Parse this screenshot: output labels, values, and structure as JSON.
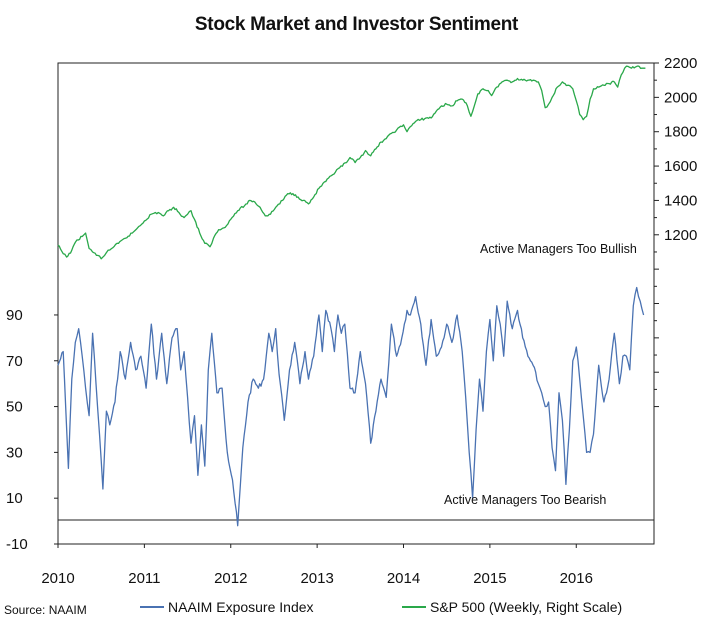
{
  "chart_data": {
    "type": "line",
    "title": "Stock Market and Investor Sentiment",
    "x_ticks": [
      "2010",
      "2011",
      "2012",
      "2013",
      "2014",
      "2015",
      "2016"
    ],
    "xlim": [
      2010.0,
      2016.9
    ],
    "y_left": {
      "ticks": [
        "90",
        "70",
        "50",
        "30",
        "10",
        "-10"
      ],
      "ylim": [
        -10,
        200
      ]
    },
    "y_right": {
      "ticks": [
        "2200",
        "2000",
        "1800",
        "1600",
        "1400",
        "1200"
      ],
      "ylim": [
        -600,
        2200
      ]
    },
    "grid": false,
    "legend_position": "bottom",
    "series": [
      {
        "name": "NAAIM Exposure Index",
        "axis": "left",
        "color": "#4a72b2",
        "x": [
          2010.0,
          2010.06,
          2010.12,
          2010.16,
          2010.2,
          2010.24,
          2010.28,
          2010.32,
          2010.36,
          2010.4,
          2010.44,
          2010.48,
          2010.52,
          2010.56,
          2010.6,
          2010.66,
          2010.72,
          2010.78,
          2010.84,
          2010.9,
          2010.96,
          2011.02,
          2011.08,
          2011.14,
          2011.2,
          2011.26,
          2011.32,
          2011.38,
          2011.42,
          2011.46,
          2011.5,
          2011.54,
          2011.58,
          2011.62,
          2011.66,
          2011.7,
          2011.74,
          2011.78,
          2011.84,
          2011.9,
          2011.96,
          2012.02,
          2012.08,
          2012.14,
          2012.2,
          2012.26,
          2012.32,
          2012.38,
          2012.44,
          2012.48,
          2012.52,
          2012.56,
          2012.62,
          2012.68,
          2012.74,
          2012.8,
          2012.86,
          2012.9,
          2012.96,
          2013.02,
          2013.06,
          2013.1,
          2013.16,
          2013.2,
          2013.24,
          2013.28,
          2013.32,
          2013.38,
          2013.44,
          2013.5,
          2013.56,
          2013.62,
          2013.68,
          2013.74,
          2013.8,
          2013.86,
          2013.92,
          2013.98,
          2014.04,
          2014.08,
          2014.14,
          2014.2,
          2014.26,
          2014.32,
          2014.38,
          2014.44,
          2014.5,
          2014.56,
          2014.62,
          2014.68,
          2014.72,
          2014.76,
          2014.8,
          2014.84,
          2014.88,
          2014.92,
          2014.96,
          2015.0,
          2015.04,
          2015.08,
          2015.12,
          2015.16,
          2015.2,
          2015.26,
          2015.32,
          2015.38,
          2015.44,
          2015.5,
          2015.56,
          2015.6,
          2015.64,
          2015.68,
          2015.72,
          2015.76,
          2015.8,
          2015.84,
          2015.88,
          2015.92,
          2015.96,
          2016.0,
          2016.04,
          2016.08,
          2016.12,
          2016.16,
          2016.2,
          2016.26,
          2016.32,
          2016.38,
          2016.44,
          2016.5,
          2016.54,
          2016.58,
          2016.62,
          2016.66,
          2016.7,
          2016.74,
          2016.78
        ],
        "values": [
          68,
          74,
          23,
          62,
          78,
          84,
          72,
          58,
          46,
          82,
          60,
          38,
          14,
          48,
          42,
          52,
          74,
          62,
          78,
          66,
          72,
          58,
          86,
          62,
          82,
          60,
          80,
          84,
          66,
          74,
          54,
          34,
          46,
          20,
          42,
          24,
          66,
          82,
          56,
          58,
          30,
          18,
          -2,
          32,
          52,
          62,
          58,
          62,
          82,
          74,
          84,
          64,
          44,
          66,
          78,
          60,
          74,
          62,
          72,
          90,
          74,
          92,
          84,
          74,
          90,
          82,
          86,
          58,
          56,
          74,
          60,
          34,
          48,
          62,
          54,
          86,
          72,
          80,
          92,
          90,
          98,
          86,
          68,
          88,
          72,
          76,
          86,
          78,
          90,
          74,
          54,
          30,
          10,
          40,
          62,
          48,
          74,
          88,
          70,
          94,
          86,
          72,
          96,
          84,
          92,
          80,
          72,
          68,
          60,
          56,
          50,
          52,
          32,
          22,
          56,
          44,
          16,
          40,
          70,
          76,
          62,
          46,
          30,
          30,
          38,
          68,
          52,
          62,
          82,
          60,
          72,
          72,
          66,
          94,
          102,
          96,
          90
        ]
      },
      {
        "name": "S&P 500 (Weekly, Right Scale)",
        "axis": "right",
        "color": "#2aa84a",
        "x": [
          2010.0,
          2010.06,
          2010.1,
          2010.16,
          2010.22,
          2010.28,
          2010.32,
          2010.36,
          2010.4,
          2010.46,
          2010.5,
          2010.54,
          2010.58,
          2010.62,
          2010.7,
          2010.78,
          2010.86,
          2010.92,
          2011.0,
          2011.08,
          2011.16,
          2011.22,
          2011.28,
          2011.34,
          2011.4,
          2011.46,
          2011.5,
          2011.54,
          2011.58,
          2011.64,
          2011.7,
          2011.76,
          2011.8,
          2011.86,
          2011.92,
          2012.0,
          2012.08,
          2012.16,
          2012.22,
          2012.28,
          2012.34,
          2012.4,
          2012.46,
          2012.52,
          2012.6,
          2012.66,
          2012.72,
          2012.78,
          2012.84,
          2012.9,
          2012.96,
          2013.02,
          2013.1,
          2013.18,
          2013.26,
          2013.34,
          2013.38,
          2013.44,
          2013.5,
          2013.56,
          2013.62,
          2013.68,
          2013.74,
          2013.8,
          2013.86,
          2013.92,
          2014.0,
          2014.04,
          2014.08,
          2014.14,
          2014.2,
          2014.26,
          2014.32,
          2014.38,
          2014.44,
          2014.5,
          2014.56,
          2014.62,
          2014.68,
          2014.74,
          2014.78,
          2014.82,
          2014.86,
          2014.92,
          2014.98,
          2015.02,
          2015.08,
          2015.14,
          2015.2,
          2015.26,
          2015.32,
          2015.38,
          2015.44,
          2015.5,
          2015.56,
          2015.6,
          2015.64,
          2015.68,
          2015.72,
          2015.78,
          2015.84,
          2015.9,
          2015.96,
          2016.0,
          2016.04,
          2016.08,
          2016.12,
          2016.16,
          2016.2,
          2016.26,
          2016.32,
          2016.38,
          2016.44,
          2016.48,
          2016.52,
          2016.56,
          2016.6,
          2016.64,
          2016.7,
          2016.76,
          2016.8
        ],
        "values": [
          1140,
          1090,
          1070,
          1110,
          1170,
          1190,
          1210,
          1120,
          1100,
          1080,
          1060,
          1080,
          1110,
          1120,
          1150,
          1180,
          1210,
          1240,
          1280,
          1320,
          1330,
          1310,
          1340,
          1360,
          1330,
          1300,
          1320,
          1340,
          1290,
          1210,
          1150,
          1130,
          1180,
          1230,
          1240,
          1290,
          1340,
          1370,
          1400,
          1390,
          1360,
          1310,
          1320,
          1360,
          1400,
          1440,
          1440,
          1420,
          1400,
          1380,
          1420,
          1470,
          1510,
          1550,
          1590,
          1620,
          1650,
          1620,
          1650,
          1690,
          1660,
          1700,
          1740,
          1760,
          1790,
          1810,
          1840,
          1800,
          1830,
          1860,
          1870,
          1880,
          1880,
          1920,
          1950,
          1960,
          1950,
          1980,
          1990,
          1950,
          1890,
          1950,
          2020,
          2050,
          2040,
          2010,
          2060,
          2090,
          2100,
          2090,
          2110,
          2100,
          2100,
          2100,
          2090,
          2040,
          1940,
          1960,
          2000,
          2060,
          2090,
          2070,
          2050,
          1980,
          1900,
          1870,
          1890,
          1990,
          2050,
          2060,
          2070,
          2080,
          2090,
          2060,
          2130,
          2170,
          2180,
          2170,
          2180,
          2170,
          2170
        ]
      }
    ],
    "annotations": [
      "Active Managers Too Bullish",
      "Active Managers Too Bearish"
    ],
    "source": "Source: NAAIM"
  }
}
